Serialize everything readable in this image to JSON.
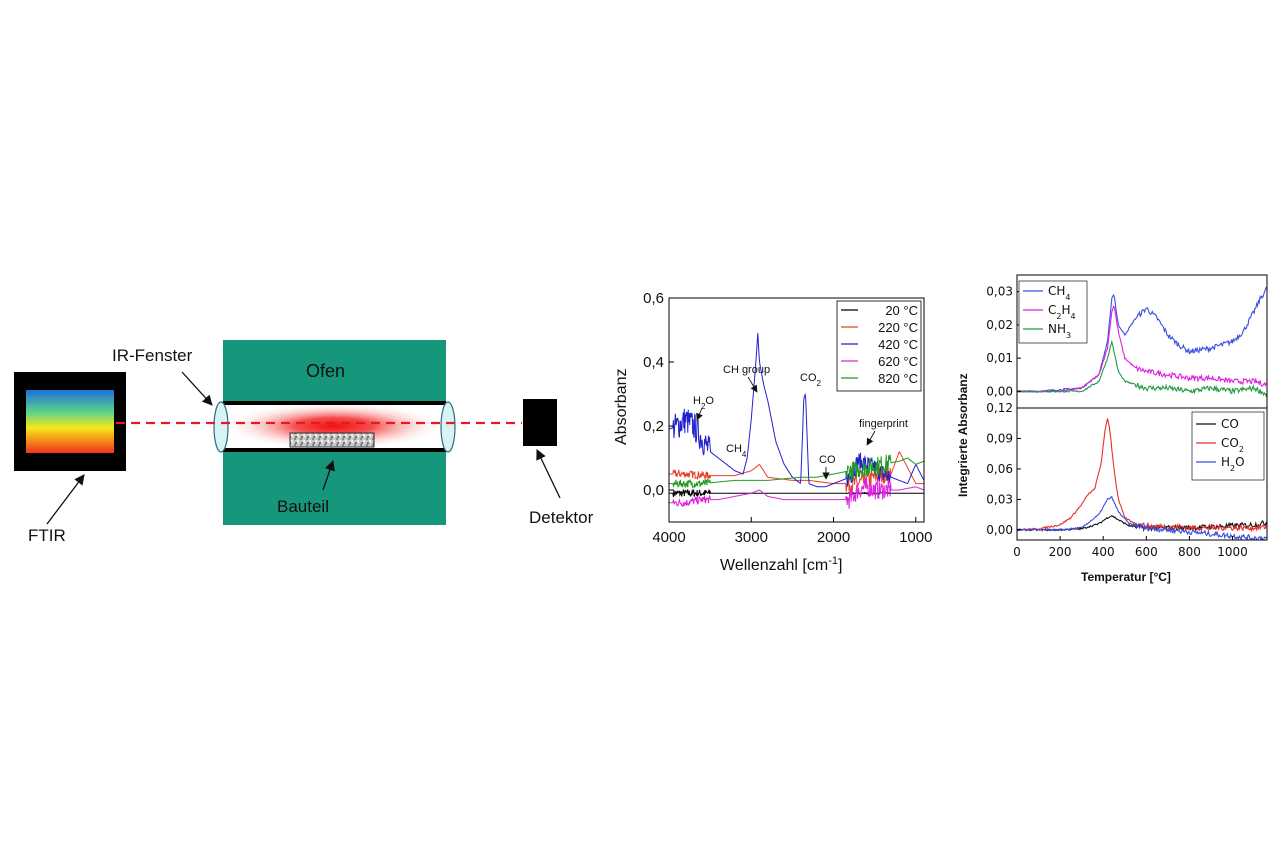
{
  "schematic": {
    "ftir_label": "FTIR",
    "window_label": "IR-Fenster",
    "furnace_label": "Ofen",
    "component_label": "Bauteil",
    "detector_label": "Detektor",
    "colors": {
      "furnace": "#16967a",
      "beam": "#e8181c",
      "box": "#000000"
    }
  },
  "chart_data": [
    {
      "type": "line",
      "xlabel": "Wellenzahl [cm",
      "xlabel_sup": "-1",
      "xlabel_end": "]",
      "ylabel": "Absorbanz",
      "xlim": [
        4000,
        900
      ],
      "ylim": [
        -0.1,
        0.6
      ],
      "x_ticks": [
        4000,
        3000,
        2000,
        1000
      ],
      "x_tick_labels": [
        "4000",
        "3000",
        "2000",
        "1000"
      ],
      "y_ticks": [
        0.0,
        0.2,
        0.4,
        0.6
      ],
      "y_tick_labels": [
        "0,0",
        "0,2",
        "0,4",
        "0,6"
      ],
      "legend_position": "top-right",
      "annotations": {
        "h2o": "H",
        "h2o_sub": "2",
        "h2o_end": "O",
        "ch4": "CH",
        "ch4_sub": "4",
        "ch_group": "CH group",
        "co2": "CO",
        "co2_sub": "2",
        "co": "CO",
        "fingerprint": "fingerprint"
      },
      "series": [
        {
          "name": "20 °C",
          "color": "#000000",
          "x": [
            4000,
            3500,
            3000,
            2500,
            2000,
            1500,
            1000,
            900
          ],
          "y": [
            -0.01,
            -0.01,
            -0.01,
            -0.01,
            -0.01,
            -0.01,
            -0.01,
            -0.01
          ]
        },
        {
          "name": "220 °C",
          "color": "#e8402a",
          "x": [
            4000,
            3800,
            3500,
            3200,
            3000,
            2900,
            2800,
            2500,
            2300,
            2000,
            1700,
            1400,
            1300,
            1200,
            1000,
            900
          ],
          "y": [
            0.05,
            0.05,
            0.045,
            0.045,
            0.06,
            0.08,
            0.04,
            0.03,
            0.03,
            0.02,
            0.02,
            0.05,
            0.05,
            0.12,
            0.02,
            0.02
          ]
        },
        {
          "name": "420 °C",
          "color": "#2222cc",
          "x": [
            4000,
            3900,
            3800,
            3700,
            3600,
            3500,
            3400,
            3300,
            3200,
            3100,
            3050,
            3000,
            2950,
            2920,
            2900,
            2850,
            2800,
            2700,
            2600,
            2500,
            2400,
            2360,
            2340,
            2300,
            2200,
            2100,
            2000,
            1900,
            1800,
            1700,
            1600,
            1500,
            1400,
            1300,
            1200,
            1100,
            1000,
            900
          ],
          "y": [
            0.19,
            0.2,
            0.22,
            0.2,
            0.16,
            0.12,
            0.1,
            0.08,
            0.06,
            0.05,
            0.1,
            0.22,
            0.38,
            0.49,
            0.4,
            0.33,
            0.28,
            0.15,
            0.08,
            0.04,
            0.02,
            0.29,
            0.3,
            0.02,
            0.01,
            0.01,
            0.02,
            0.03,
            0.04,
            0.09,
            0.08,
            0.07,
            0.05,
            0.04,
            0.03,
            0.02,
            0.08,
            0.03
          ]
        },
        {
          "name": "620 °C",
          "color": "#e020e0",
          "x": [
            4000,
            3800,
            3600,
            3400,
            3200,
            3000,
            2900,
            2800,
            2600,
            2400,
            2200,
            2000,
            1800,
            1700,
            1600,
            1500,
            1400,
            1200,
            1000,
            900
          ],
          "y": [
            -0.04,
            -0.04,
            -0.03,
            -0.03,
            -0.02,
            -0.01,
            0.0,
            -0.02,
            -0.03,
            -0.03,
            -0.03,
            -0.03,
            -0.03,
            0.0,
            0.01,
            0.0,
            0.0,
            0.0,
            0.01,
            0.0
          ]
        },
        {
          "name": "820 °C",
          "color": "#229922",
          "x": [
            4000,
            3800,
            3600,
            3400,
            3200,
            3000,
            2800,
            2600,
            2400,
            2200,
            2000,
            1800,
            1600,
            1400,
            1200,
            1100,
            1000,
            900
          ],
          "y": [
            0.02,
            0.02,
            0.02,
            0.025,
            0.03,
            0.03,
            0.03,
            0.035,
            0.04,
            0.04,
            0.05,
            0.06,
            0.07,
            0.08,
            0.09,
            0.1,
            0.08,
            0.09
          ]
        }
      ]
    },
    {
      "type": "line",
      "ylabel": "Integrierte Absorbanz",
      "xlim": [
        0,
        1160
      ],
      "ylim": [
        -0.005,
        0.035
      ],
      "y_ticks": [
        0.0,
        0.01,
        0.02,
        0.03
      ],
      "y_tick_labels": [
        "0,00",
        "0,01",
        "0,02",
        "0,03"
      ],
      "legend_position": "top-left",
      "series": [
        {
          "name_main": "CH",
          "name_sub": "4",
          "color": "#3a4fe0",
          "x": [
            0,
            100,
            200,
            300,
            380,
            420,
            440,
            450,
            470,
            500,
            550,
            600,
            650,
            700,
            750,
            800,
            900,
            1000,
            1050,
            1100,
            1130,
            1160
          ],
          "y": [
            0.0,
            0.0,
            0.0005,
            0.001,
            0.005,
            0.015,
            0.028,
            0.029,
            0.02,
            0.017,
            0.022,
            0.025,
            0.022,
            0.017,
            0.014,
            0.012,
            0.013,
            0.015,
            0.018,
            0.024,
            0.028,
            0.031
          ]
        },
        {
          "name_main": "C",
          "name_sub": "2",
          "name_mid": "H",
          "name_sub2": "4",
          "color": "#e020e0",
          "x": [
            0,
            200,
            300,
            380,
            420,
            440,
            450,
            470,
            500,
            550,
            600,
            700,
            800,
            900,
            1000,
            1100,
            1160
          ],
          "y": [
            0.0,
            0.0,
            0.001,
            0.005,
            0.013,
            0.024,
            0.026,
            0.018,
            0.01,
            0.007,
            0.006,
            0.005,
            0.004,
            0.004,
            0.003,
            0.003,
            0.002
          ]
        },
        {
          "name_main": "NH",
          "name_sub": "3",
          "color": "#229944",
          "x": [
            0,
            200,
            300,
            380,
            420,
            440,
            450,
            470,
            500,
            550,
            600,
            700,
            800,
            900,
            1000,
            1100,
            1160
          ],
          "y": [
            0.0,
            0.0,
            0.0,
            0.003,
            0.01,
            0.015,
            0.012,
            0.006,
            0.003,
            0.002,
            0.001,
            0.001,
            0.0,
            0.001,
            0.0,
            0.001,
            -0.001
          ]
        }
      ]
    },
    {
      "type": "line",
      "xlabel": "Temperatur [°C]",
      "xlim": [
        0,
        1160
      ],
      "ylim": [
        -0.01,
        0.12
      ],
      "x_ticks": [
        0,
        200,
        400,
        600,
        800,
        1000
      ],
      "x_tick_labels": [
        "0",
        "200",
        "400",
        "600",
        "800",
        "1000"
      ],
      "y_ticks": [
        0.0,
        0.03,
        0.06,
        0.09,
        0.12
      ],
      "y_tick_labels": [
        "0,00",
        "0,03",
        "0,06",
        "0,09",
        "0,12"
      ],
      "legend_position": "top-right",
      "series": [
        {
          "name_main": "CO",
          "color": "#111111",
          "x": [
            0,
            200,
            300,
            380,
            420,
            440,
            470,
            520,
            600,
            700,
            800,
            900,
            1000,
            1100,
            1160
          ],
          "y": [
            0.0,
            0.0,
            0.001,
            0.006,
            0.012,
            0.014,
            0.01,
            0.004,
            0.002,
            0.002,
            0.002,
            0.003,
            0.004,
            0.005,
            0.007
          ]
        },
        {
          "name_main": "CO",
          "name_sub": "2",
          "color": "#e8302a",
          "x": [
            0,
            100,
            200,
            250,
            300,
            330,
            360,
            390,
            410,
            420,
            430,
            450,
            470,
            500,
            550,
            600,
            700,
            800,
            900,
            1000,
            1100,
            1160
          ],
          "y": [
            0.0,
            0.001,
            0.005,
            0.012,
            0.025,
            0.035,
            0.04,
            0.065,
            0.1,
            0.11,
            0.1,
            0.06,
            0.03,
            0.012,
            0.006,
            0.004,
            0.003,
            0.002,
            0.002,
            0.002,
            0.002,
            0.003
          ]
        },
        {
          "name_main": "H",
          "name_sub": "2",
          "name_mid": "O",
          "color": "#3a4fe0",
          "x": [
            0,
            200,
            300,
            380,
            420,
            440,
            470,
            520,
            600,
            700,
            800,
            900,
            1000,
            1100,
            1160
          ],
          "y": [
            0.0,
            0.0,
            0.002,
            0.015,
            0.03,
            0.032,
            0.018,
            0.006,
            0.002,
            0.0,
            -0.002,
            -0.004,
            -0.006,
            -0.008,
            -0.008
          ]
        }
      ]
    }
  ]
}
